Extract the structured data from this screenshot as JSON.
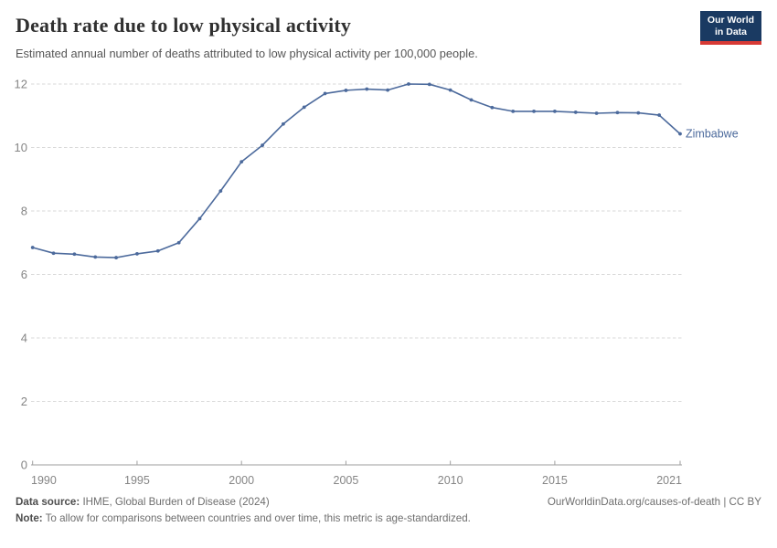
{
  "header": {
    "title": "Death rate due to low physical activity",
    "subtitle": "Estimated annual number of deaths attributed to low physical activity per 100,000 people.",
    "logo": {
      "line1": "Our World",
      "line2": "in Data"
    }
  },
  "chart_data": {
    "type": "line",
    "title": "Death rate due to low physical activity",
    "xlabel": "",
    "ylabel": "",
    "xlim": [
      1990,
      2021
    ],
    "ylim": [
      0,
      12
    ],
    "x_ticks": [
      1990,
      1995,
      2000,
      2005,
      2010,
      2015,
      2021
    ],
    "y_ticks": [
      0,
      2,
      4,
      6,
      8,
      10,
      12
    ],
    "grid": "horizontal-dashed",
    "legend_position": "line-end-label",
    "series": [
      {
        "name": "Zimbabwe",
        "color": "#4c6a9c",
        "x": [
          1990,
          1991,
          1992,
          1993,
          1994,
          1995,
          1996,
          1997,
          1998,
          1999,
          2000,
          2001,
          2002,
          2003,
          2004,
          2005,
          2006,
          2007,
          2008,
          2009,
          2010,
          2011,
          2012,
          2013,
          2014,
          2015,
          2016,
          2017,
          2018,
          2019,
          2020,
          2021
        ],
        "values": [
          6.85,
          6.67,
          6.64,
          6.55,
          6.53,
          6.65,
          6.74,
          7.0,
          7.76,
          8.63,
          9.55,
          10.07,
          10.74,
          11.27,
          11.7,
          11.8,
          11.84,
          11.81,
          12.0,
          11.99,
          11.81,
          11.5,
          11.26,
          11.14,
          11.14,
          11.14,
          11.11,
          11.08,
          11.1,
          11.09,
          11.02,
          10.43
        ]
      }
    ]
  },
  "footer": {
    "source_label": "Data source:",
    "source_text": " IHME, Global Burden of Disease (2024)",
    "attribution": "OurWorldinData.org/causes-of-death | CC BY",
    "note_label": "Note:",
    "note_text": " To allow for comparisons between countries and over time, this metric is age-standardized."
  },
  "colors": {
    "line": "#4c6a9c",
    "grid": "#d9d9d9",
    "axis": "#9e9e9e",
    "tick_label": "#858585",
    "logo_bg": "#1a3a62",
    "logo_bar": "#d73a35"
  }
}
